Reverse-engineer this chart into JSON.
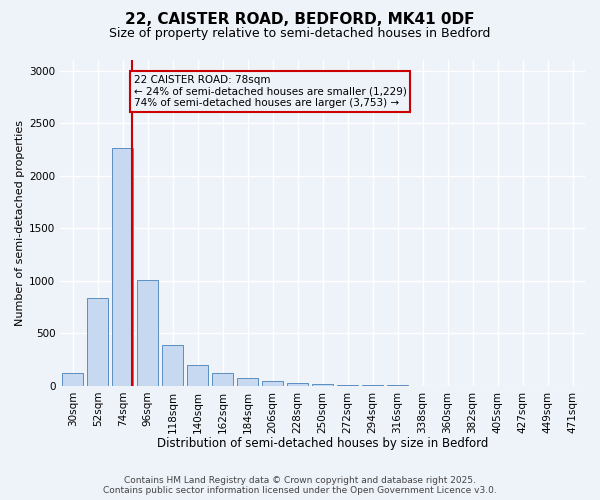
{
  "title_line1": "22, CAISTER ROAD, BEDFORD, MK41 0DF",
  "title_line2": "Size of property relative to semi-detached houses in Bedford",
  "xlabel": "Distribution of semi-detached houses by size in Bedford",
  "ylabel": "Number of semi-detached properties",
  "categories": [
    "30sqm",
    "52sqm",
    "74sqm",
    "96sqm",
    "118sqm",
    "140sqm",
    "162sqm",
    "184sqm",
    "206sqm",
    "228sqm",
    "250sqm",
    "272sqm",
    "294sqm",
    "316sqm",
    "338sqm",
    "360sqm",
    "382sqm",
    "405sqm",
    "427sqm",
    "449sqm",
    "471sqm"
  ],
  "values": [
    120,
    840,
    2260,
    1010,
    390,
    195,
    120,
    70,
    45,
    25,
    20,
    5,
    5,
    5,
    2,
    2,
    2,
    2,
    1,
    1,
    1
  ],
  "bar_color": "#c6d9f0",
  "bar_edge_color": "#5a8fc0",
  "property_label": "22 CAISTER ROAD: 78sqm",
  "pct_smaller": 24,
  "pct_larger": 74,
  "count_smaller": 1229,
  "count_larger": 3753,
  "vline_color": "#cc0000",
  "vline_x_index": 2.36,
  "annotation_box_color": "#cc0000",
  "ylim": [
    0,
    3100
  ],
  "yticks": [
    0,
    500,
    1000,
    1500,
    2000,
    2500,
    3000
  ],
  "footer_line1": "Contains HM Land Registry data © Crown copyright and database right 2025.",
  "footer_line2": "Contains public sector information licensed under the Open Government Licence v3.0.",
  "background_color": "#eef2f9",
  "grid_color": "#ffffff",
  "title_fontsize": 11,
  "subtitle_fontsize": 9,
  "xlabel_fontsize": 8.5,
  "ylabel_fontsize": 8,
  "tick_fontsize": 7.5,
  "footer_fontsize": 6.5,
  "annot_fontsize": 7.5
}
